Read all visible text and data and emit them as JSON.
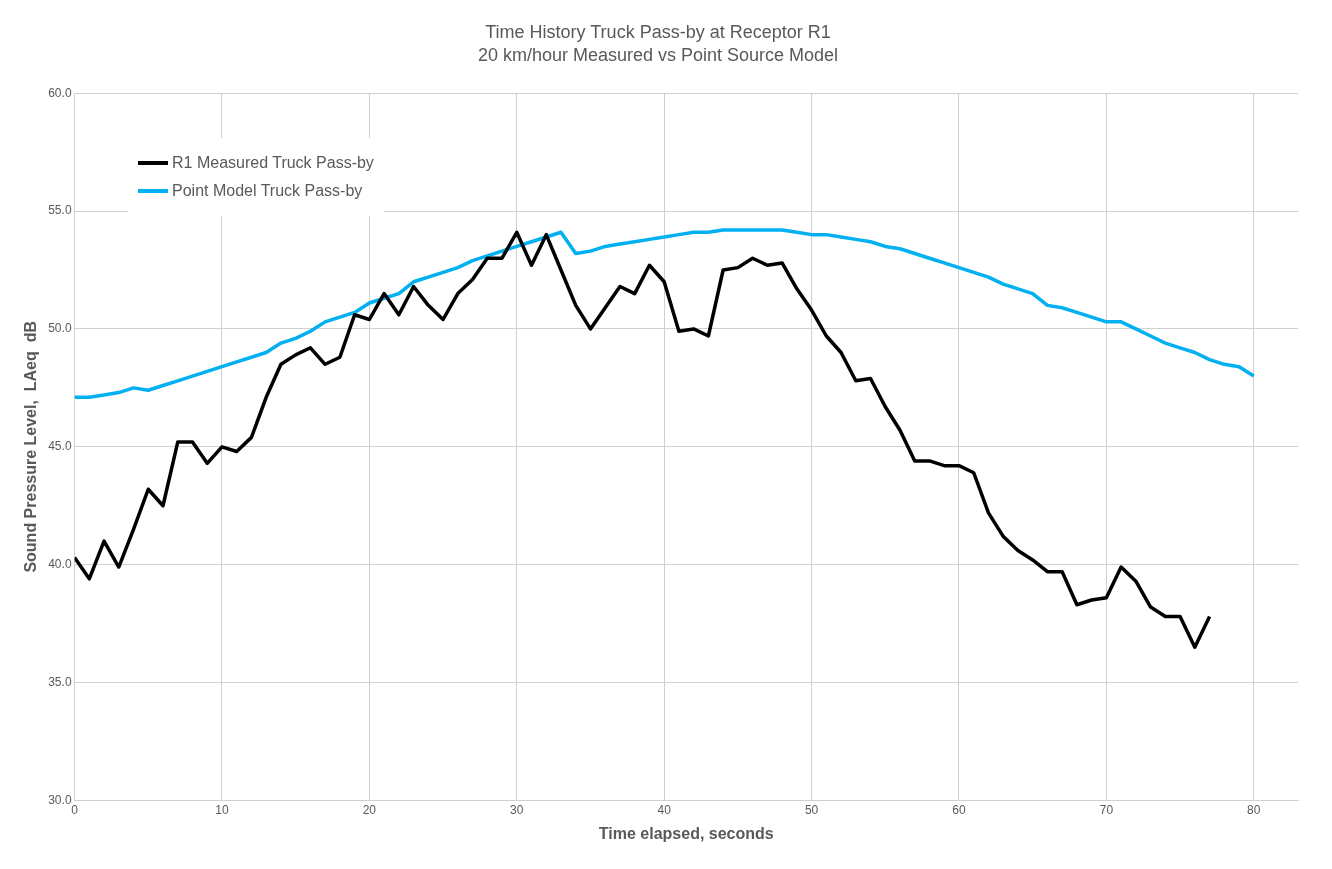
{
  "chart_data": {
    "type": "line",
    "title": "Time History Truck Pass-by at Receptor R1",
    "subtitle": "20 km/hour Measured vs Point Source Model",
    "xlabel": "Time elapsed, seconds",
    "ylabel": "Sound Pressure Level,  LAeq  dB",
    "xlim": [
      0,
      83
    ],
    "xticks": [
      0,
      10,
      20,
      30,
      40,
      50,
      60,
      70,
      80
    ],
    "ylim": [
      30,
      60
    ],
    "yticks": [
      {
        "value": 30,
        "label": "30.0"
      },
      {
        "value": 35,
        "label": "35.0"
      },
      {
        "value": 40,
        "label": "40.0"
      },
      {
        "value": 45,
        "label": "45.0"
      },
      {
        "value": 50,
        "label": "50.0"
      },
      {
        "value": 55,
        "label": "55.0"
      },
      {
        "value": 60,
        "label": "60.0"
      }
    ],
    "grid": true,
    "legend": "top left",
    "marker": "none",
    "line_style": "solid",
    "series": [
      {
        "name": "R1 Measured Truck Pass-by",
        "color": "#000000",
        "x": [
          0,
          1,
          2,
          3,
          4,
          5,
          6,
          7,
          8,
          9,
          10,
          11,
          12,
          13,
          14,
          15,
          16,
          17,
          18,
          19,
          20,
          21,
          22,
          23,
          24,
          25,
          26,
          27,
          28,
          29,
          30,
          31,
          32,
          33,
          34,
          35,
          36,
          37,
          38,
          39,
          40,
          41,
          42,
          43,
          44,
          45,
          46,
          47,
          48,
          49,
          50,
          51,
          52,
          53,
          54,
          55,
          56,
          57,
          58,
          59,
          60,
          61,
          62,
          63,
          64,
          65,
          66,
          67,
          68,
          69,
          70,
          71,
          72,
          73,
          74,
          75,
          76,
          77
        ],
        "values": [
          40.3,
          39.4,
          41.0,
          39.9,
          41.5,
          43.2,
          42.5,
          45.2,
          45.2,
          44.3,
          45.0,
          44.8,
          45.4,
          47.1,
          48.5,
          48.9,
          49.2,
          48.5,
          48.8,
          50.6,
          50.4,
          51.5,
          50.6,
          51.8,
          51.0,
          50.4,
          51.5,
          52.1,
          53.0,
          53.0,
          54.1,
          52.7,
          54.0,
          52.5,
          51.0,
          50.0,
          50.9,
          51.8,
          51.5,
          52.7,
          52.0,
          49.9,
          50.0,
          49.7,
          52.5,
          52.6,
          53.0,
          52.7,
          52.8,
          51.7,
          50.8,
          49.7,
          49.0,
          47.8,
          47.9,
          46.7,
          45.7,
          44.4,
          44.4,
          44.2,
          44.2,
          43.9,
          42.2,
          41.2,
          40.6,
          40.2,
          39.7,
          39.7,
          38.3,
          38.5,
          38.6,
          39.9,
          39.3,
          38.2,
          37.8,
          37.8,
          36.5,
          37.8
        ]
      },
      {
        "name": "Point Model Truck Pass-by",
        "color": "#00b0f0",
        "x": [
          0,
          1,
          2,
          3,
          4,
          5,
          6,
          7,
          8,
          9,
          10,
          11,
          12,
          13,
          14,
          15,
          16,
          17,
          18,
          19,
          20,
          21,
          22,
          23,
          24,
          25,
          26,
          27,
          28,
          29,
          30,
          31,
          32,
          33,
          34,
          35,
          36,
          37,
          38,
          39,
          40,
          41,
          42,
          43,
          44,
          45,
          46,
          47,
          48,
          49,
          50,
          51,
          52,
          53,
          54,
          55,
          56,
          57,
          58,
          59,
          60,
          61,
          62,
          63,
          64,
          65,
          66,
          67,
          68,
          69,
          70,
          71,
          72,
          73,
          74,
          75,
          76,
          77,
          78,
          79,
          80
        ],
        "values": [
          47.1,
          47.1,
          47.2,
          47.3,
          47.5,
          47.4,
          47.6,
          47.8,
          48.0,
          48.2,
          48.4,
          48.6,
          48.8,
          49.0,
          49.4,
          49.6,
          49.9,
          50.3,
          50.5,
          50.7,
          51.1,
          51.3,
          51.5,
          52.0,
          52.2,
          52.4,
          52.6,
          52.9,
          53.1,
          53.3,
          53.5,
          53.7,
          53.9,
          54.1,
          53.2,
          53.3,
          53.5,
          53.6,
          53.7,
          53.8,
          53.9,
          54.0,
          54.1,
          54.1,
          54.2,
          54.2,
          54.2,
          54.2,
          54.2,
          54.1,
          54.0,
          54.0,
          53.9,
          53.8,
          53.7,
          53.5,
          53.4,
          53.2,
          53.0,
          52.8,
          52.6,
          52.4,
          52.2,
          51.9,
          51.7,
          51.5,
          51.0,
          50.9,
          50.7,
          50.5,
          50.3,
          50.3,
          50.0,
          49.7,
          49.4,
          49.2,
          49.0,
          48.7,
          48.5,
          48.4,
          48.0
        ]
      }
    ]
  }
}
